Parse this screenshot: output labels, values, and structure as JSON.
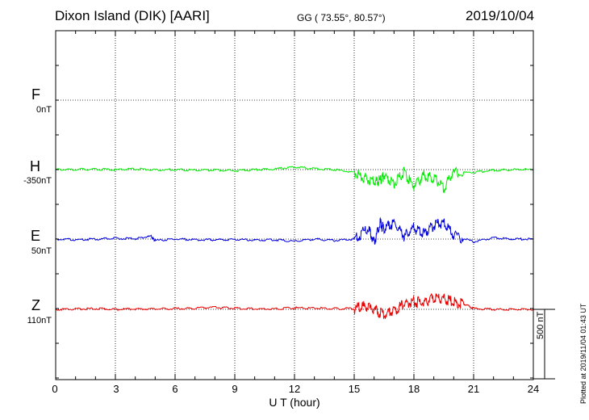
{
  "header": {
    "station": "Dixon Island (DIK)  [AARI]",
    "coords": "GG ( 73.55°,  80.57°)",
    "date": "2019/10/04"
  },
  "footer": {
    "xlabel": "U T (hour)",
    "scale": "500 nT",
    "plotted": "Plotted at 2019/11/04 01:43 UT"
  },
  "chart_data": {
    "type": "line",
    "xlabel": "U T (hour)",
    "xlim": [
      0,
      24
    ],
    "x_ticks": [
      "0",
      "3",
      "6",
      "9",
      "12",
      "15",
      "18",
      "21",
      "24"
    ],
    "grid": true,
    "scale_bar_nT": 500,
    "series": [
      {
        "name": "F",
        "offset_label": "0nT",
        "color": "#ffa500",
        "values_nT": []
      },
      {
        "name": "H",
        "offset_label": "-350nT",
        "color": "#00ee00",
        "x": [
          0,
          1,
          2,
          3,
          4,
          5,
          6,
          7,
          8,
          9,
          10,
          11,
          12,
          13,
          14,
          15,
          15.5,
          16,
          16.3,
          16.5,
          17,
          17.5,
          18,
          18.5,
          19,
          19.5,
          20,
          21,
          22,
          23,
          24
        ],
        "values_nT": [
          0,
          2,
          3,
          0,
          4,
          -2,
          0,
          -5,
          -3,
          -8,
          0,
          3,
          20,
          8,
          0,
          -20,
          -60,
          -90,
          -80,
          -40,
          -100,
          -20,
          -120,
          -40,
          -60,
          -130,
          -20,
          -20,
          -5,
          0,
          0
        ]
      },
      {
        "name": "E",
        "offset_label": "50nT",
        "color": "#0000dd",
        "x": [
          0,
          1,
          2,
          3,
          4,
          4.8,
          5,
          6,
          7,
          8,
          9,
          10,
          11,
          12,
          13,
          14,
          15,
          15.7,
          16,
          16.3,
          16.5,
          17,
          17.5,
          18,
          18.5,
          19,
          19.5,
          20,
          21,
          22,
          23,
          24
        ],
        "values_nT": [
          0,
          -5,
          0,
          5,
          3,
          20,
          -10,
          0,
          -5,
          -5,
          -2,
          -8,
          -5,
          -15,
          0,
          -10,
          0,
          80,
          -30,
          120,
          70,
          120,
          20,
          80,
          40,
          100,
          120,
          30,
          -20,
          10,
          0,
          0
        ]
      },
      {
        "name": "Z",
        "offset_label": "110nT",
        "color": "#ee0000",
        "x": [
          0,
          1,
          2,
          3,
          4,
          5,
          6,
          7,
          8,
          9,
          10,
          11,
          12,
          13,
          14,
          15,
          15.5,
          16,
          16.5,
          17,
          17.5,
          18,
          18.5,
          19,
          19.5,
          20,
          20.5,
          21,
          22,
          23,
          24
        ],
        "values_nT": [
          0,
          2,
          5,
          0,
          3,
          2,
          5,
          8,
          15,
          8,
          4,
          4,
          10,
          8,
          5,
          5,
          20,
          0,
          -40,
          -10,
          40,
          55,
          50,
          80,
          75,
          50,
          40,
          5,
          0,
          0,
          0
        ]
      }
    ]
  }
}
